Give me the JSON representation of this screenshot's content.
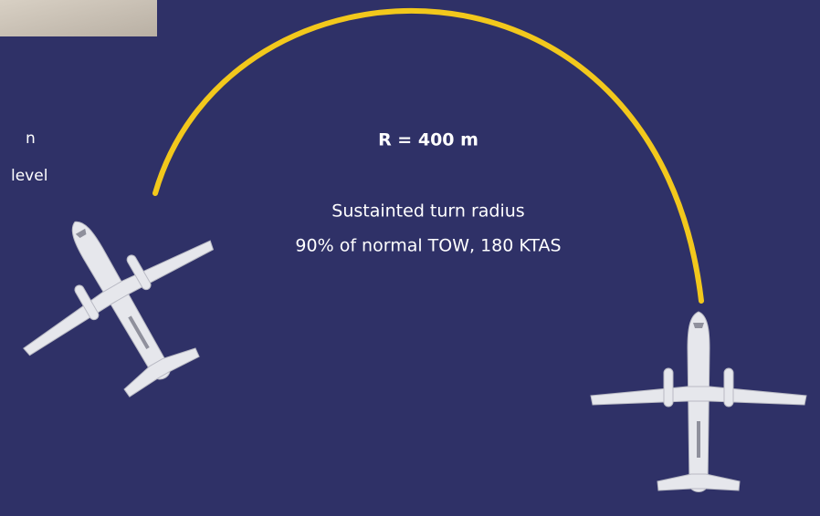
{
  "radius_label": "R = 400 m",
  "caption": {
    "line1": "Sustainted turn radius",
    "line2": "90% of normal TOW, 180 KTAS"
  },
  "cut_text": {
    "line1": "n",
    "line2": "level"
  }
}
